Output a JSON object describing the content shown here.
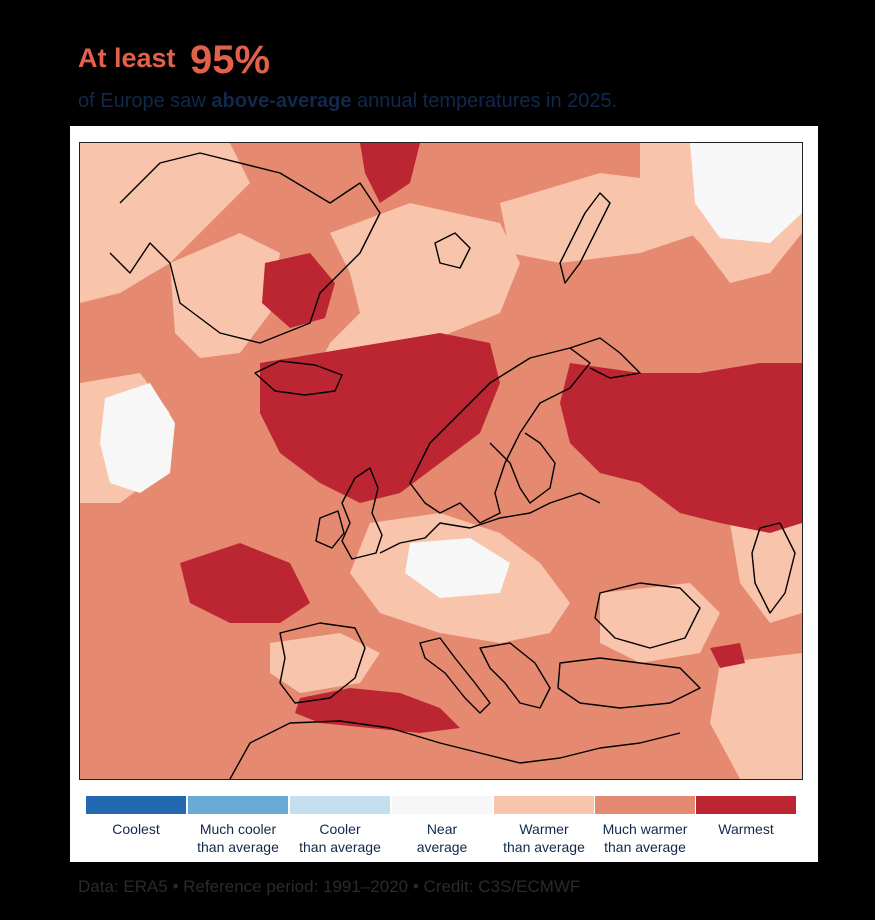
{
  "headline": {
    "lead": "At least",
    "percent": "95%"
  },
  "subline": {
    "before": "of Europe saw ",
    "emphasis": "above-average",
    "after": " annual temperatures in 2025."
  },
  "map": {
    "region": "Europe",
    "year": "2025"
  },
  "legend": [
    {
      "label": "Coolest",
      "color": "#2369b1"
    },
    {
      "label": "Much cooler\nthan average",
      "color": "#6aaad6"
    },
    {
      "label": "Cooler\nthan average",
      "color": "#c4dff0"
    },
    {
      "label": "Near\naverage",
      "color": "#f7f7f7"
    },
    {
      "label": "Warmer\nthan average",
      "color": "#f8c4ab"
    },
    {
      "label": "Much warmer\nthan average",
      "color": "#e58a70"
    },
    {
      "label": "Warmest",
      "color": "#bc2532"
    }
  ],
  "footer": "Data: ERA5 • Reference period: 1991–2020 • Credit: C3S/ECMWF"
}
